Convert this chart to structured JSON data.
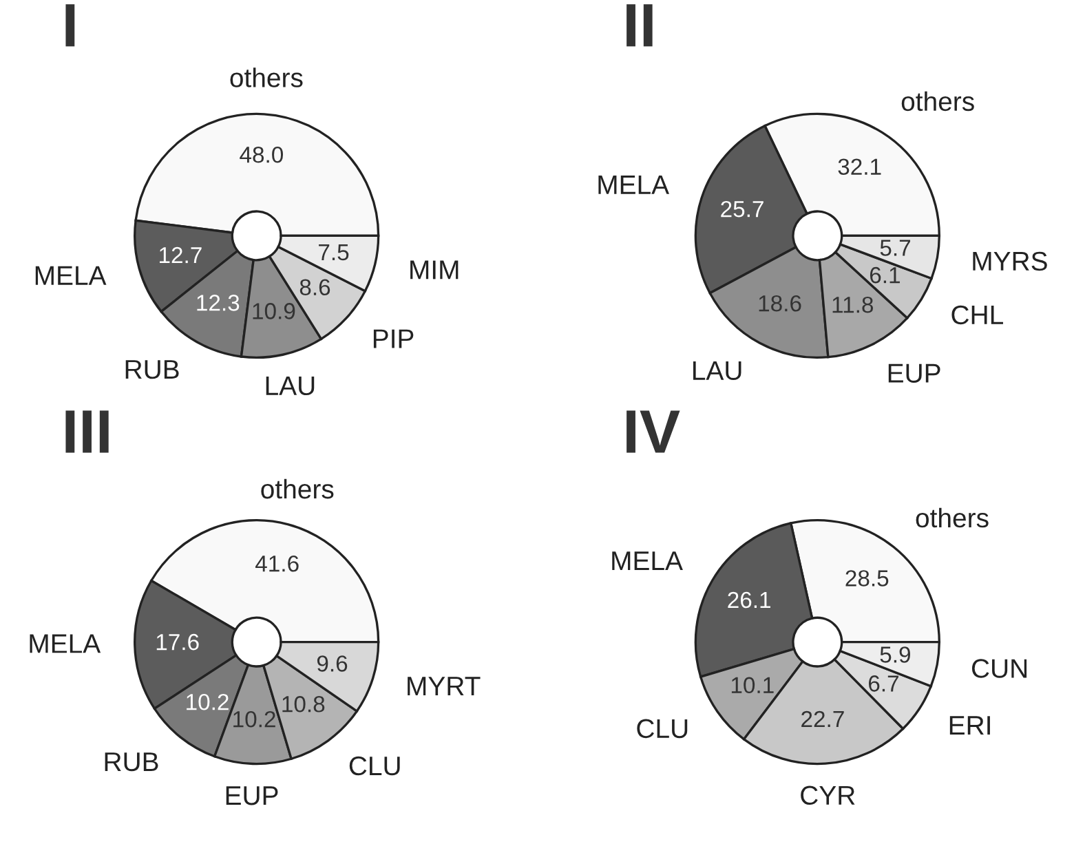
{
  "chart_data": [
    {
      "type": "donut",
      "title": "I",
      "categories": [
        "others",
        "MELA",
        "RUB",
        "LAU",
        "PIP",
        "MIM"
      ],
      "values": [
        48.0,
        12.7,
        12.3,
        10.9,
        8.6,
        7.5
      ],
      "value_labels": [
        "48.0",
        "12.7",
        "12.3",
        "10.9",
        "8.6",
        "7.5"
      ],
      "colors": [
        "#f9f9f9",
        "#5c5c5c",
        "#7a7a7a",
        "#8e8e8e",
        "#d2d2d2",
        "#ececec"
      ]
    },
    {
      "type": "donut",
      "title": "II",
      "categories": [
        "others",
        "MELA",
        "LAU",
        "EUP",
        "CHL",
        "MYRS"
      ],
      "values": [
        32.1,
        25.7,
        18.6,
        11.8,
        6.1,
        5.7
      ],
      "value_labels": [
        "32.1",
        "25.7",
        "18.6",
        "11.8",
        "6.1",
        "5.7"
      ],
      "colors": [
        "#f9f9f9",
        "#5a5a5a",
        "#8e8e8e",
        "#a8a8a8",
        "#c8c8c8",
        "#e6e6e6"
      ]
    },
    {
      "type": "donut",
      "title": "III",
      "categories": [
        "others",
        "MELA",
        "RUB",
        "EUP",
        "CLU",
        "MYRT"
      ],
      "values": [
        41.6,
        17.6,
        10.2,
        10.2,
        10.8,
        9.6
      ],
      "value_labels": [
        "41.6",
        "17.6",
        "10.2",
        "10.2",
        "10.8",
        "9.6"
      ],
      "colors": [
        "#f9f9f9",
        "#5c5c5c",
        "#7a7a7a",
        "#9a9a9a",
        "#b4b4b4",
        "#d8d8d8"
      ]
    },
    {
      "type": "donut",
      "title": "IV",
      "categories": [
        "others",
        "MELA",
        "CLU",
        "CYR",
        "ERI",
        "CUN"
      ],
      "values": [
        28.5,
        26.1,
        10.1,
        22.7,
        6.7,
        5.9
      ],
      "value_labels": [
        "28.5",
        "26.1",
        "10.1",
        "22.7",
        "6.7",
        "5.9"
      ],
      "colors": [
        "#f9f9f9",
        "#5a5a5a",
        "#aaaaaa",
        "#c8c8c8",
        "#dcdcdc",
        "#eeeeee"
      ]
    }
  ]
}
